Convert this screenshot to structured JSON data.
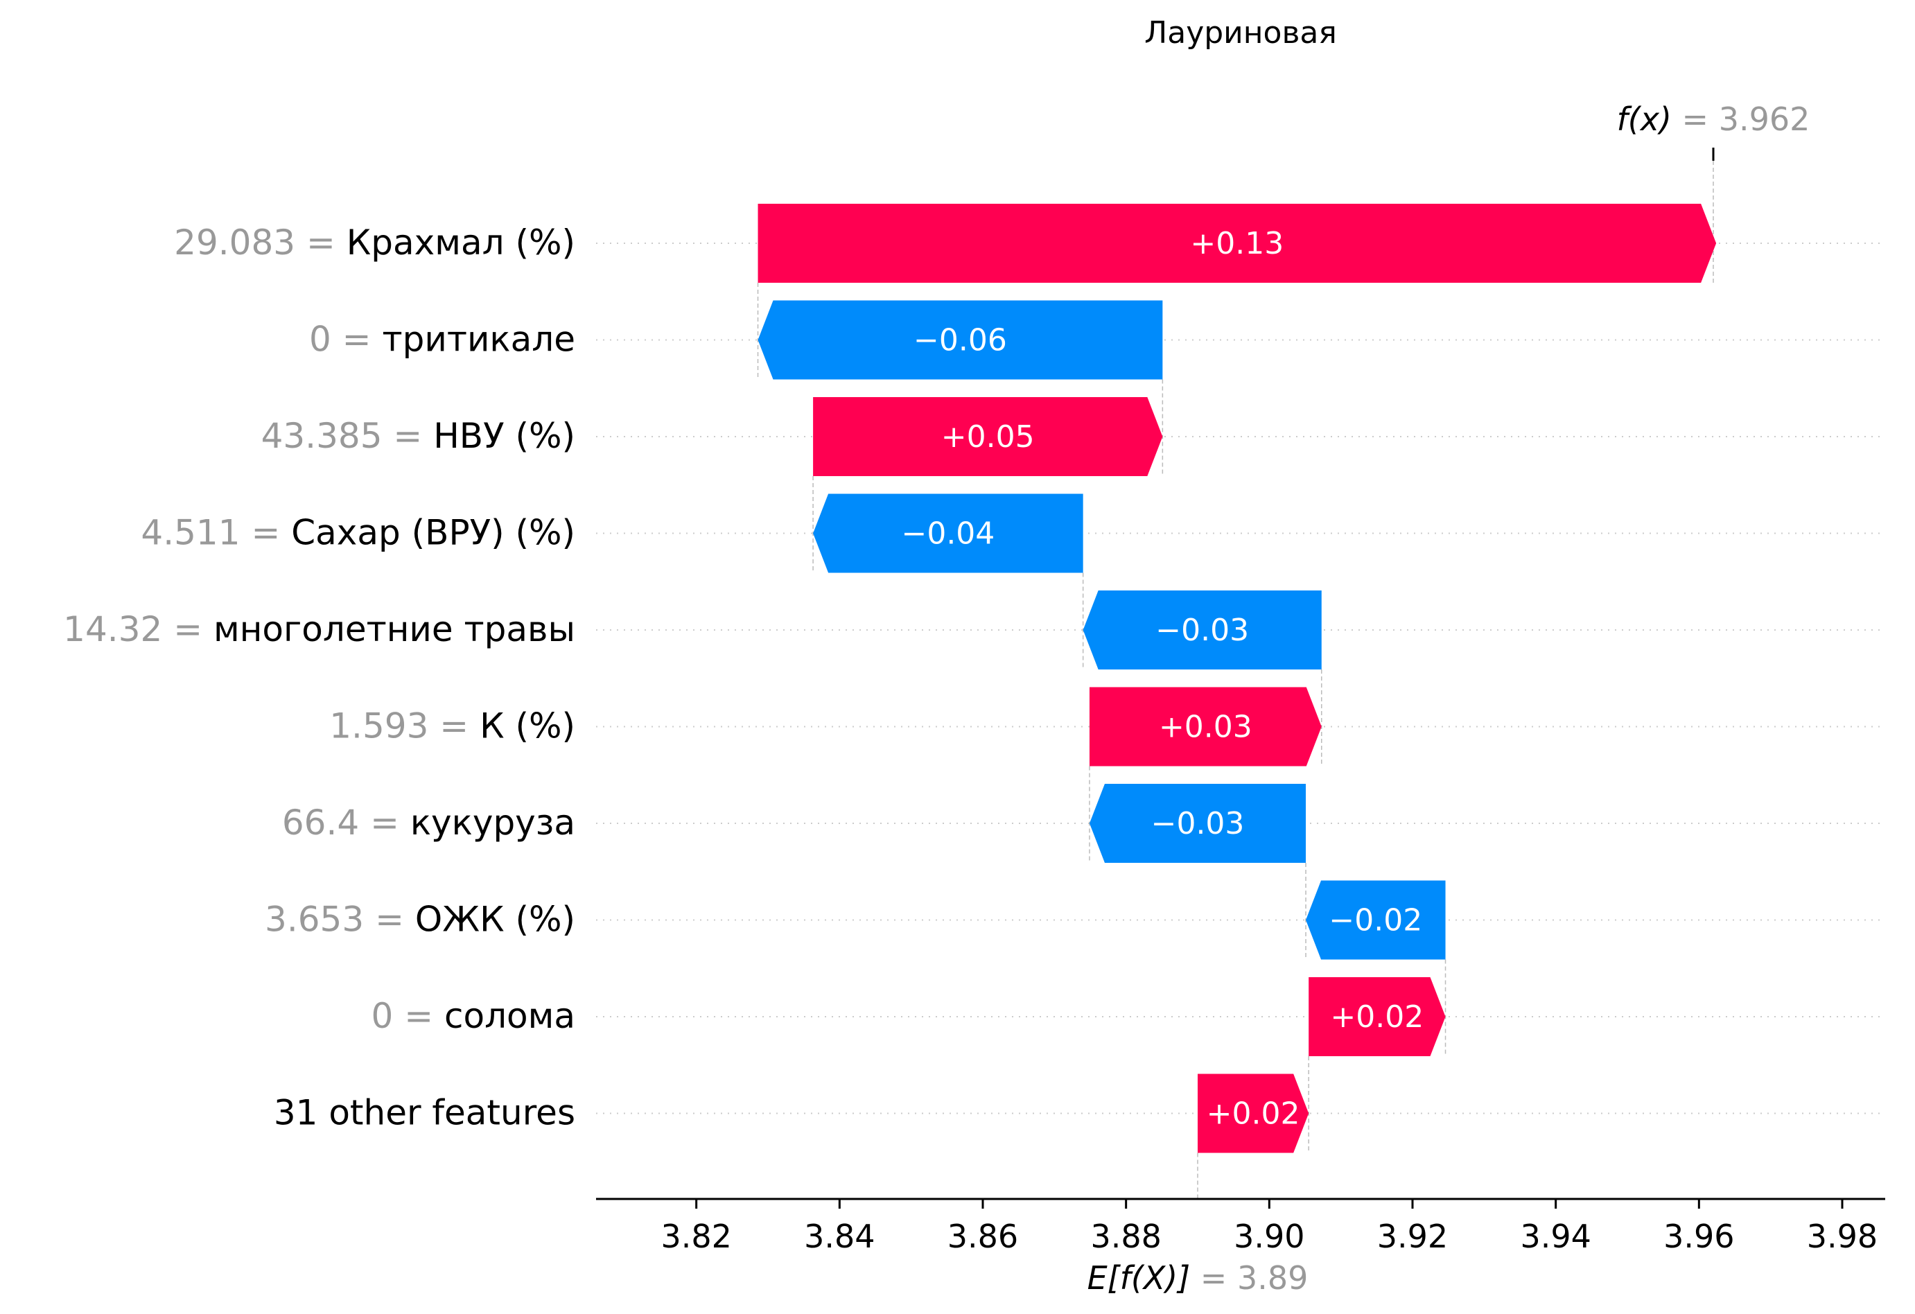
{
  "colors": {
    "positive": "#ff0051",
    "negative": "#008bfb",
    "value_gray": "#999999",
    "text": "#000000"
  },
  "chart_data": {
    "type": "waterfall",
    "title": "Лауриновая",
    "fx": {
      "label": "f(x)",
      "value": 3.962,
      "value_text": "3.962"
    },
    "base": {
      "label": "E[f(X)]",
      "value": 3.89,
      "value_text": "3.89"
    },
    "xlim": [
      3.806,
      3.986
    ],
    "xticks": [
      "3.82",
      "3.84",
      "3.86",
      "3.88",
      "3.90",
      "3.92",
      "3.94",
      "3.96",
      "3.98"
    ],
    "features": [
      {
        "value_text": "29.083",
        "name": "Крахмал (%)",
        "start": 3.8286,
        "end": 3.9624,
        "label": "+0.13"
      },
      {
        "value_text": "0",
        "name": "тритикале",
        "start": 3.8851,
        "end": 3.8286,
        "label": "−0.06"
      },
      {
        "value_text": "43.385",
        "name": "НВУ (%)",
        "start": 3.8363,
        "end": 3.8851,
        "label": "+0.05"
      },
      {
        "value_text": "4.511",
        "name": "Сахар (ВРУ) (%)",
        "start": 3.874,
        "end": 3.8363,
        "label": "−0.04"
      },
      {
        "value_text": "14.32",
        "name": "многолетние травы",
        "start": 3.9073,
        "end": 3.874,
        "label": "−0.03"
      },
      {
        "value_text": "1.593",
        "name": "К (%)",
        "start": 3.8749,
        "end": 3.9073,
        "label": "+0.03"
      },
      {
        "value_text": "66.4",
        "name": "кукуруза",
        "start": 3.9051,
        "end": 3.8749,
        "label": "−0.03"
      },
      {
        "value_text": "3.653",
        "name": "ОЖК (%)",
        "start": 3.9246,
        "end": 3.9051,
        "label": "−0.02"
      },
      {
        "value_text": "0",
        "name": "солома",
        "start": 3.9055,
        "end": 3.9246,
        "label": "+0.02"
      },
      {
        "value_text": "",
        "name": "31 other features",
        "start": 3.89,
        "end": 3.9055,
        "label": "+0.02"
      }
    ]
  }
}
